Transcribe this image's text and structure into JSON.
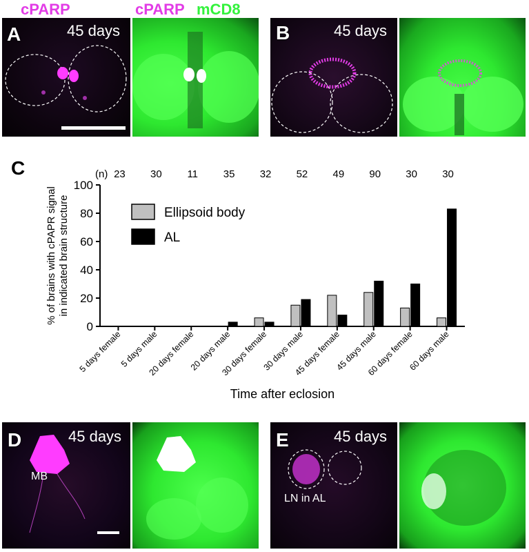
{
  "legend_top": {
    "magenta_label": "cPARP",
    "pair_magenta": "cPARP",
    "pair_green": "mCD8"
  },
  "panel_a": {
    "letter": "A",
    "days": "45 days"
  },
  "panel_b": {
    "letter": "B",
    "days": "45 days"
  },
  "panel_c": {
    "letter": "C"
  },
  "panel_d": {
    "letter": "D",
    "days": "45 days",
    "label": "MB"
  },
  "panel_e": {
    "letter": "E",
    "days": "45 days",
    "label": "LN in AL"
  },
  "colors": {
    "magenta": "#e23ce6",
    "green": "#33f23c",
    "ellipsoid_bar": "#c0c0c0",
    "al_bar": "#000000"
  },
  "chart_data": {
    "type": "bar",
    "categories": [
      "5 days female",
      "5 days male",
      "20 days female",
      "20 days male",
      "30 days female",
      "30 days male",
      "45 days female",
      "45 days male",
      "60 days female",
      "60 days male"
    ],
    "n_label": "(n)",
    "n_values": [
      "23",
      "30",
      "11",
      "35",
      "32",
      "52",
      "49",
      "90",
      "30",
      "30"
    ],
    "series": [
      {
        "name": "Ellipsoid body",
        "values": [
          0,
          0,
          0,
          0,
          6,
          15,
          22,
          24,
          13,
          6
        ]
      },
      {
        "name": "AL",
        "values": [
          0,
          0,
          0,
          3,
          3,
          19,
          8,
          32,
          30,
          83
        ]
      }
    ],
    "ylim": [
      0,
      100
    ],
    "yticks": [
      "0",
      "20",
      "40",
      "60",
      "80",
      "100"
    ],
    "ylabel_line1": "% of brains with cPAPR signal",
    "ylabel_line2": "in indicated brain structure",
    "xlabel": "Time after eclosion",
    "legend_position": "upper-left"
  }
}
